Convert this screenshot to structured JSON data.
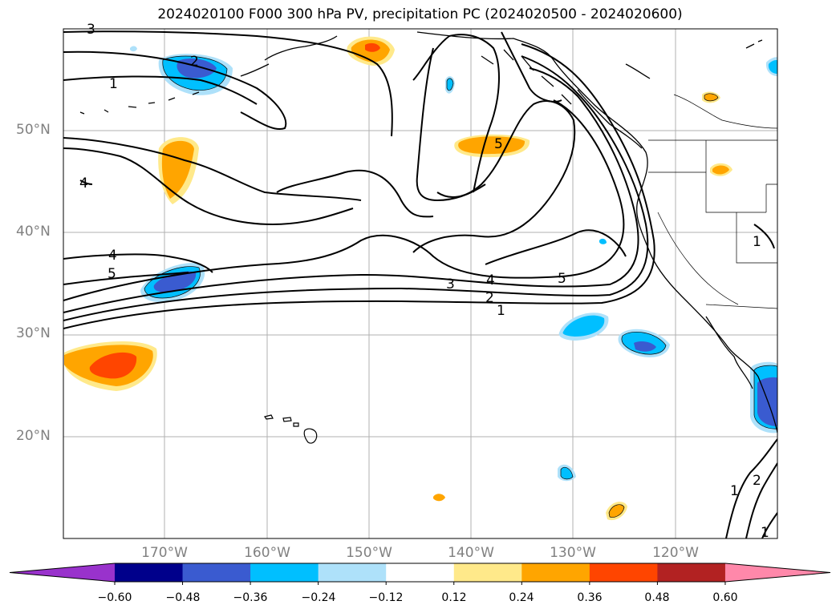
{
  "title": "2024020100 F000 300 hPa PV, precipitation PC (2024020500 - 2024020600)",
  "latitude_labels": [
    "50°N",
    "40°N",
    "30°N",
    "20°N"
  ],
  "longitude_labels": [
    "170°W",
    "160°W",
    "150°W",
    "140°W",
    "130°W",
    "120°W"
  ],
  "contour_labels": {
    "top_left_2": "2",
    "top_left_1": "1",
    "top_left_3": "3",
    "west_4": "4",
    "west_4b": "4",
    "west_5": "5",
    "center_5": "5",
    "jet_3": "3",
    "jet_4": "4",
    "jet_5": "5",
    "jet_2": "2",
    "jet_1": "1",
    "east_1": "1",
    "se_1": "1",
    "se_2": "2",
    "se_1b": "1"
  },
  "colorbar": {
    "tick_labels": [
      "−0.60",
      "−0.48",
      "−0.36",
      "−0.24",
      "−0.12",
      "0.12",
      "0.24",
      "0.36",
      "0.48",
      "0.60"
    ],
    "colors": [
      "#9932cc",
      "#00008b",
      "#3a5bd0",
      "#00bfff",
      "#aee1fa",
      "#ffffff",
      "#ffe98a",
      "#ffa500",
      "#ff4500",
      "#b22222",
      "#ff88aa"
    ]
  },
  "colors": {
    "grid": "#b0b0b0",
    "contour": "#000000",
    "axis_label": "#808080"
  }
}
